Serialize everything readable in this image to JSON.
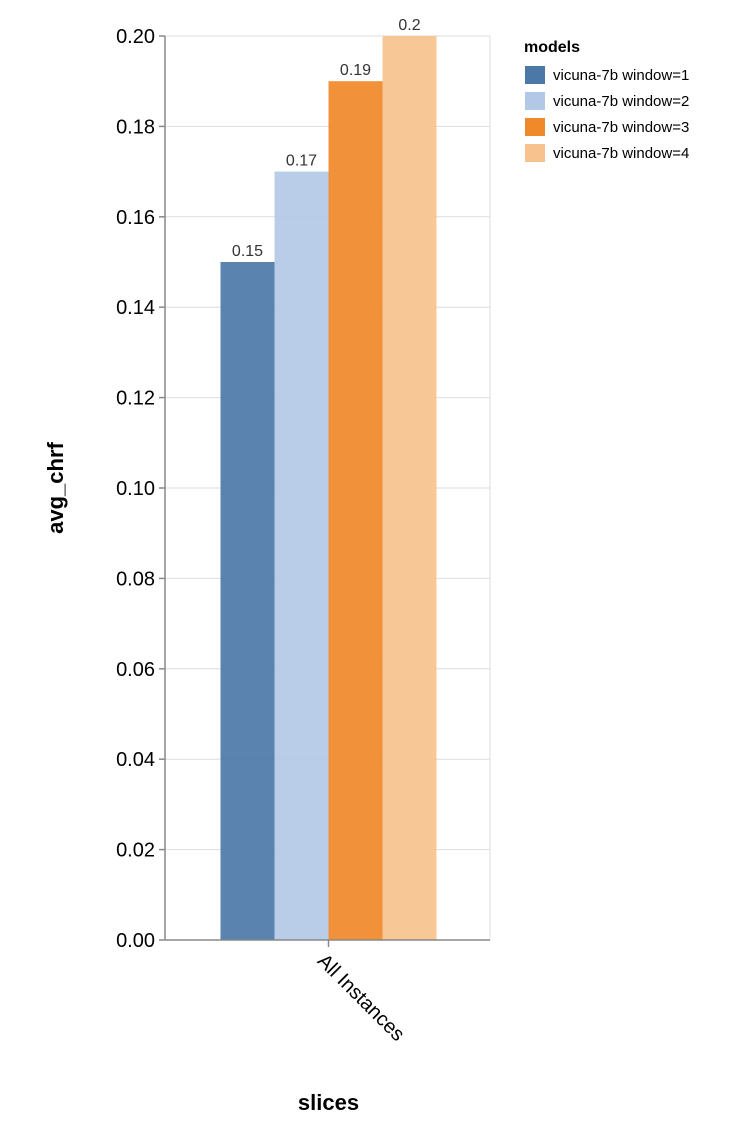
{
  "chart_data": {
    "type": "bar",
    "categories": [
      "All Instances"
    ],
    "series": [
      {
        "name": "vicuna-7b window=1",
        "values": [
          0.15
        ],
        "label": "0.15",
        "color": "#4c78a8"
      },
      {
        "name": "vicuna-7b window=2",
        "values": [
          0.17
        ],
        "label": "0.17",
        "color": "#b3c8e6"
      },
      {
        "name": "vicuna-7b window=3",
        "values": [
          0.19
        ],
        "label": "0.19",
        "color": "#f0892a"
      },
      {
        "name": "vicuna-7b window=4",
        "values": [
          0.2
        ],
        "label": "0.2",
        "color": "#f7c28d"
      }
    ],
    "xlabel": "slices",
    "ylabel": "avg_chrf",
    "ylim": [
      0,
      0.2
    ],
    "yticks": [
      "0.00",
      "0.02",
      "0.04",
      "0.06",
      "0.08",
      "0.10",
      "0.12",
      "0.14",
      "0.16",
      "0.18",
      "0.20"
    ],
    "legend_title": "models",
    "legend_position": "top-right",
    "grid": true
  }
}
